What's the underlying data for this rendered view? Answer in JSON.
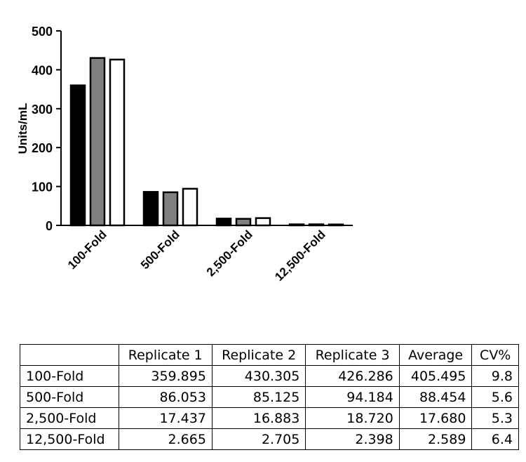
{
  "chart_data": {
    "type": "bar",
    "ylabel": "Units/mL",
    "xlabel": "",
    "ylim": [
      0,
      500
    ],
    "yticks": [
      0,
      100,
      200,
      300,
      400,
      500
    ],
    "categories": [
      "100-Fold",
      "500-Fold",
      "2,500-Fold",
      "12,500-Fold"
    ],
    "series": [
      {
        "values": [
          359.895,
          86.053,
          17.437,
          2.665
        ],
        "color": "#000000"
      },
      {
        "values": [
          430.305,
          85.125,
          16.883,
          2.705
        ],
        "color": "#808080"
      },
      {
        "values": [
          426.286,
          94.184,
          18.72,
          2.398
        ],
        "color": "#ffffff"
      }
    ]
  },
  "table": {
    "headers": [
      "",
      "Replicate 1",
      "Replicate 2",
      "Replicate 3",
      "Average",
      "CV%"
    ],
    "rows": [
      [
        "100-Fold",
        "359.895",
        "430.305",
        "426.286",
        "405.495",
        "9.8"
      ],
      [
        "500-Fold",
        "86.053",
        "85.125",
        "94.184",
        "88.454",
        "5.6"
      ],
      [
        "2,500-Fold",
        "17.437",
        "16.883",
        "18.720",
        "17.680",
        "5.3"
      ],
      [
        "12,500-Fold",
        "2.665",
        "2.705",
        "2.398",
        "2.589",
        "6.4"
      ]
    ]
  }
}
